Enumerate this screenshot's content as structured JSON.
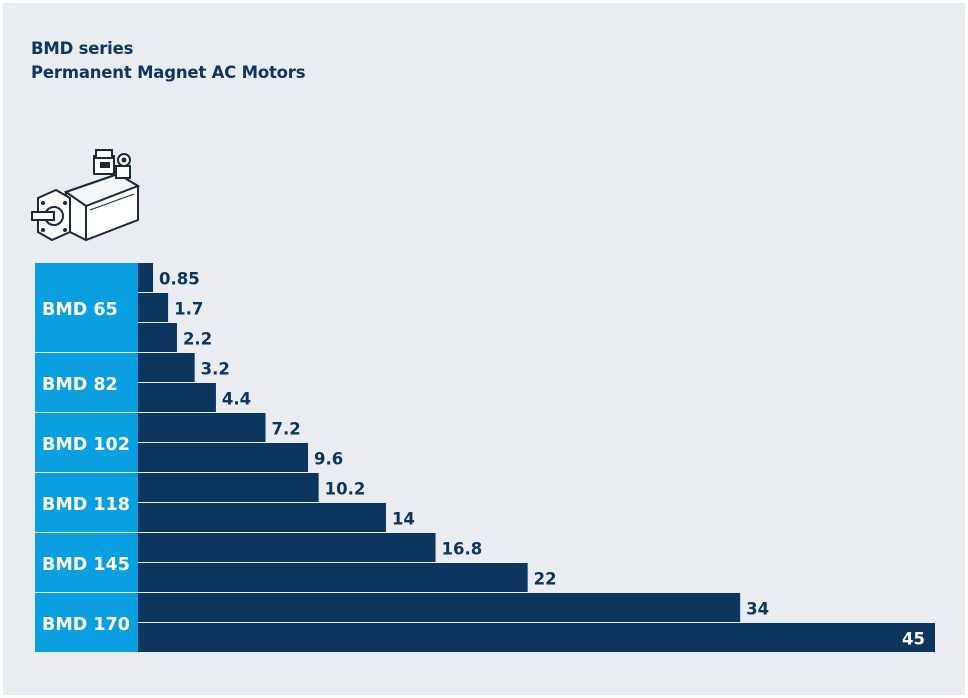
{
  "title_line1": "BMD series",
  "title_line2": "Permanent Magnet AC Motors",
  "icon": "servo-motor-icon",
  "colors": {
    "background": "#e9edf1",
    "group_label_bg": "#0a9fe0",
    "bar": "#0c3560",
    "value_text": "#0c3560",
    "label_text": "#ffffff"
  },
  "chart_data": {
    "type": "bar",
    "orientation": "horizontal",
    "title": "BMD series Permanent Magnet AC Motors",
    "groups": [
      {
        "name": "BMD 65",
        "values": [
          0.85,
          1.7,
          2.2
        ]
      },
      {
        "name": "BMD 82",
        "values": [
          3.2,
          4.4
        ]
      },
      {
        "name": "BMD 102",
        "values": [
          7.2,
          9.6
        ]
      },
      {
        "name": "BMD 118",
        "values": [
          10.2,
          14
        ]
      },
      {
        "name": "BMD 145",
        "values": [
          16.8,
          22
        ]
      },
      {
        "name": "BMD 170",
        "values": [
          34,
          45
        ]
      }
    ],
    "value_labels": [
      "0.85",
      "1.7",
      "2.2",
      "3.2",
      "4.4",
      "7.2",
      "9.6",
      "10.2",
      "14",
      "16.8",
      "22",
      "34",
      "45"
    ],
    "xlim": [
      0,
      45
    ],
    "grid": false,
    "legend": "none"
  }
}
